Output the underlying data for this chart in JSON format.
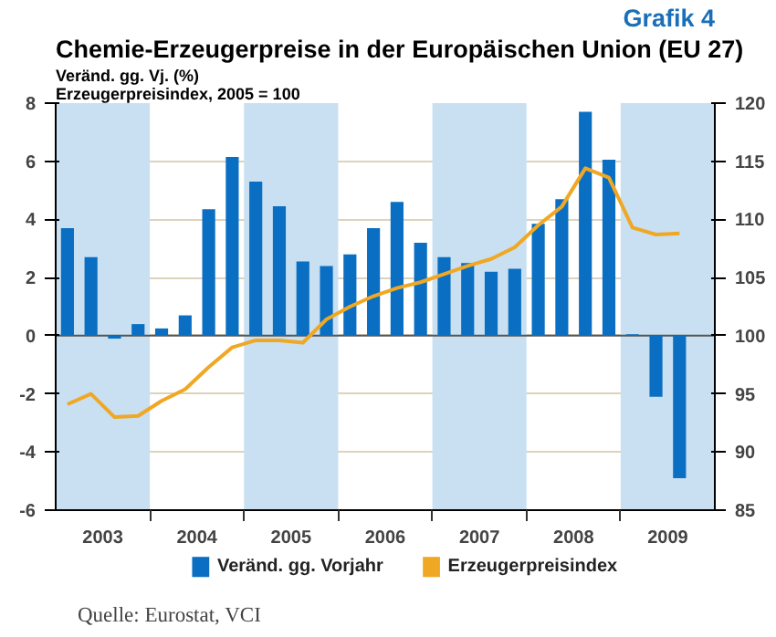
{
  "chart_data": {
    "type": "bar",
    "title": "Chemie-Erzeugerpreise in der Europäischen Union (EU 27)",
    "subtitle": "Veränd. gg. Vj. (%)\nErzeugerpreisindex, 2005 = 100",
    "annotations": [
      "Grafik 4",
      "Quelle: Eurostat, VCI"
    ],
    "x": [
      2003.125,
      2003.375,
      2003.625,
      2003.875,
      2004.125,
      2004.375,
      2004.625,
      2004.875,
      2005.125,
      2005.375,
      2005.625,
      2005.875,
      2006.125,
      2006.375,
      2006.625,
      2006.875,
      2007.125,
      2007.375,
      2007.625,
      2007.875,
      2008.125,
      2008.375,
      2008.625,
      2008.875,
      2009.125,
      2009.375,
      2009.625
    ],
    "series": [
      {
        "name": "Veränd. gg. Vorjahr",
        "type": "bar",
        "color": "#0a6fc2",
        "values": [
          3.7,
          2.7,
          -0.1,
          0.4,
          0.25,
          0.7,
          4.35,
          6.15,
          5.3,
          4.45,
          2.55,
          2.4,
          2.8,
          3.7,
          4.6,
          3.2,
          2.7,
          2.5,
          2.2,
          2.3,
          3.85,
          4.7,
          7.7,
          6.05,
          0.05,
          -2.1,
          -4.9
        ]
      },
      {
        "name": "Erzeugerpreisindex",
        "type": "line",
        "axis": "y2",
        "color": "#f0a824",
        "values": [
          94.1,
          95,
          93,
          93.1,
          94.4,
          95.4,
          97.3,
          99,
          99.6,
          99.6,
          99.4,
          101.4,
          102.5,
          103.4,
          104.1,
          104.6,
          105.3,
          106,
          106.6,
          107.6,
          109.5,
          111.1,
          114.4,
          113.6,
          109.3,
          108.7,
          108.8
        ]
      }
    ],
    "xlim": [
      2003,
      2010
    ],
    "xticks": [
      {
        "value": 2003.5,
        "label": "2003"
      },
      {
        "value": 2004,
        "label": null
      },
      {
        "value": 2004.5,
        "label": "2004"
      },
      {
        "value": 2005,
        "label": null
      },
      {
        "value": 2005.5,
        "label": "2005"
      },
      {
        "value": 2006,
        "label": null
      },
      {
        "value": 2006.5,
        "label": "2006"
      },
      {
        "value": 2007,
        "label": null
      },
      {
        "value": 2007.5,
        "label": "2007"
      },
      {
        "value": 2008,
        "label": null
      },
      {
        "value": 2008.5,
        "label": "2008"
      },
      {
        "value": 2009,
        "label": null
      },
      {
        "value": 2009.5,
        "label": "2009"
      }
    ],
    "ylim": [
      -6,
      8
    ],
    "yticks": [
      -6,
      -4,
      -2,
      0,
      2,
      4,
      6,
      8
    ],
    "y2lim": [
      85,
      120
    ],
    "y2ticks": [
      85,
      90,
      95,
      100,
      105,
      110,
      115,
      120
    ],
    "bands": [
      {
        "axis": "x",
        "from": 2003,
        "to": 2004,
        "color": "#c8e0f2"
      },
      {
        "axis": "x",
        "from": 2005,
        "to": 2006,
        "color": "#c8e0f2"
      },
      {
        "axis": "x",
        "from": 2007,
        "to": 2008,
        "color": "#c8e0f2"
      },
      {
        "axis": "x",
        "from": 2009,
        "to": 2010,
        "color": "#c8e0f2"
      }
    ],
    "ref_lines": [
      {
        "axis": "y",
        "value": 0,
        "color": "#555555"
      }
    ],
    "grid": "y",
    "legend": "bottom",
    "marker": "none",
    "line_style": "solid"
  }
}
